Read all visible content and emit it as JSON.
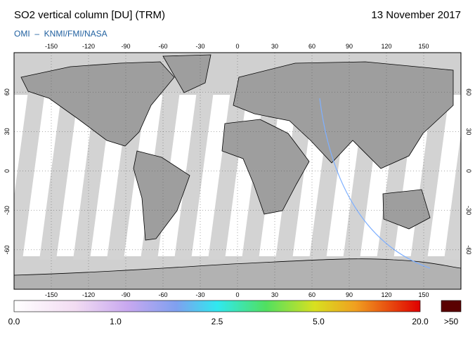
{
  "header": {
    "title": "SO2 vertical column [DU] (TRM)",
    "date": "13 November 2017",
    "credit": "OMI  –  KNMI/FMI/NASA"
  },
  "map": {
    "lon_ticks": [
      -150,
      -120,
      -90,
      -60,
      -30,
      0,
      30,
      60,
      90,
      120,
      150
    ],
    "lat_ticks": [
      60,
      30,
      0,
      -30,
      -60
    ]
  },
  "colorbar": {
    "labels": [
      "0.0",
      "1.0",
      "2.5",
      "5.0",
      "20.0"
    ],
    "overflow_label": ">50"
  }
}
